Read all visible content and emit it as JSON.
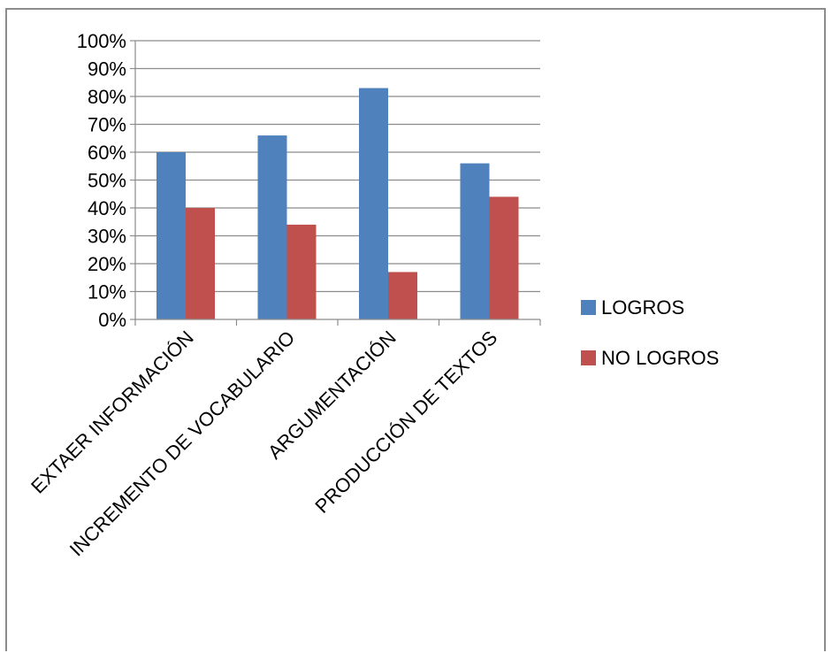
{
  "chart_data": {
    "type": "bar",
    "title": "",
    "xlabel": "",
    "ylabel": "",
    "categories": [
      "EXTAER INFORMACIÓN",
      "INCREMENTO DE VOCABULARIO",
      "ARGUMENTACIÓN",
      "PRODUCCIÓN DE TEXTOS"
    ],
    "series": [
      {
        "name": "LOGROS",
        "values": [
          60,
          66,
          83,
          56
        ],
        "color": "#4f81bd"
      },
      {
        "name": "NO LOGROS",
        "values": [
          40,
          34,
          17,
          44
        ],
        "color": "#c0504d"
      }
    ],
    "ylim": [
      0,
      100
    ],
    "yticks": [
      0,
      10,
      20,
      30,
      40,
      50,
      60,
      70,
      80,
      90,
      100
    ],
    "ytick_labels": [
      "0%",
      "10%",
      "20%",
      "30%",
      "40%",
      "50%",
      "60%",
      "70%",
      "80%",
      "90%",
      "100%"
    ],
    "grid": true,
    "legend_position": "right"
  }
}
